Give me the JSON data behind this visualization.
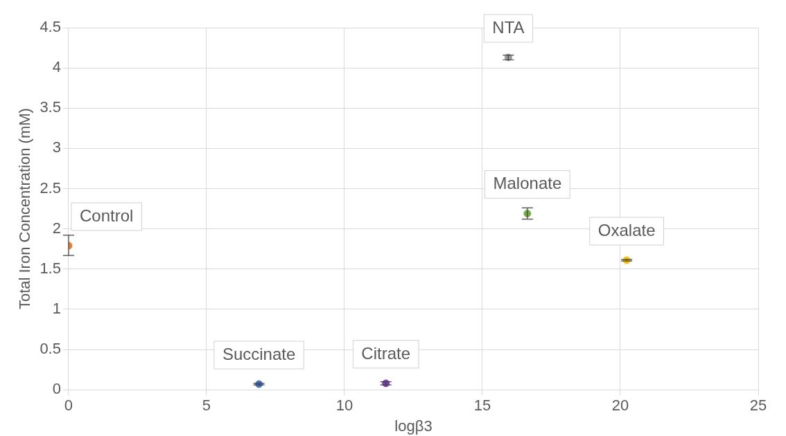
{
  "chart_data": {
    "type": "scatter",
    "xlabel": "logβ3",
    "ylabel": "Total Iron Concentration (mM)",
    "xlim": [
      0,
      25
    ],
    "xticks": [
      0,
      5,
      10,
      15,
      20,
      25
    ],
    "ylim": [
      0,
      4.5
    ],
    "yticks": [
      0,
      0.5,
      1,
      1.5,
      2,
      2.5,
      3,
      3.5,
      4,
      4.5
    ],
    "grid": true,
    "legend": false,
    "marker": "circle",
    "series": [
      {
        "name": "Control",
        "color": "#ed7d31",
        "x": [
          0
        ],
        "values": [
          1.79
        ],
        "errors": [
          [
            1.67,
            1.92
          ]
        ]
      },
      {
        "name": "Succinate",
        "color": "#4472c4",
        "x": [
          6.9
        ],
        "values": [
          0.07
        ],
        "errors": [
          0.01
        ]
      },
      {
        "name": "Citrate",
        "color": "#7e3fb5",
        "x": [
          11.5
        ],
        "values": [
          0.08
        ],
        "errors": [
          0.02
        ]
      },
      {
        "name": "NTA",
        "color": "#999999",
        "x": [
          15.94
        ],
        "values": [
          4.13
        ],
        "errors": [
          0.03
        ]
      },
      {
        "name": "Malonate",
        "color": "#70ad47",
        "x": [
          16.63
        ],
        "values": [
          2.19
        ],
        "errors": [
          [
            2.12,
            2.26
          ]
        ]
      },
      {
        "name": "Oxalate",
        "color": "#ffc000",
        "x": [
          20.23
        ],
        "values": [
          1.61
        ],
        "errors": [
          0.01
        ]
      }
    ]
  }
}
